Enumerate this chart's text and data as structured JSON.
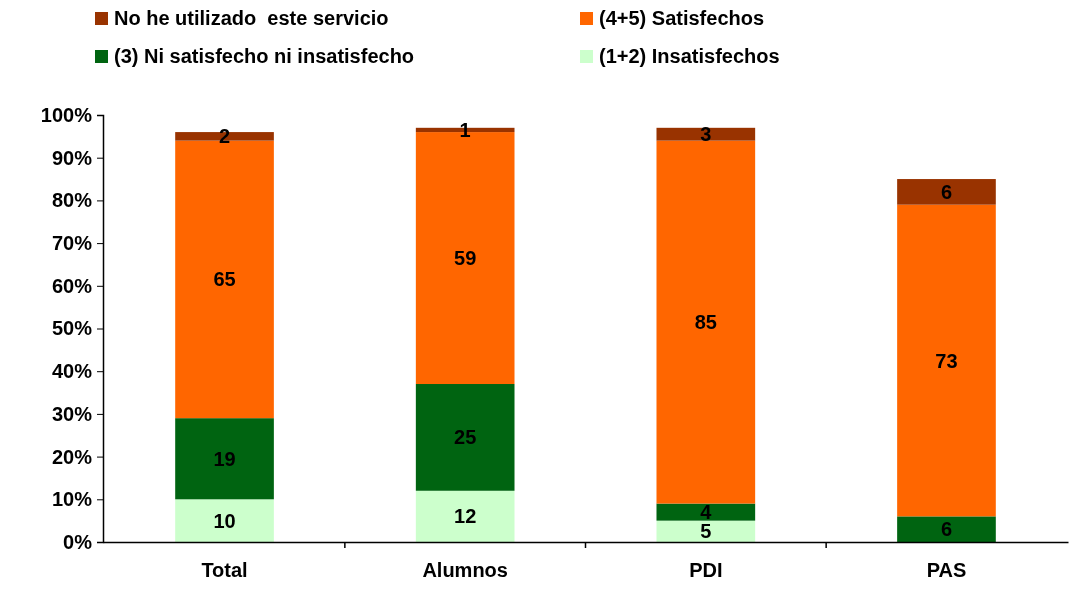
{
  "chart_data": {
    "type": "bar",
    "stacked": true,
    "categories": [
      "Total",
      "Alumnos",
      "PDI",
      "PAS"
    ],
    "series": [
      {
        "name": "(1+2) Insatisfechos",
        "color": "#ccffcc",
        "values": [
          10,
          12,
          5,
          null
        ]
      },
      {
        "name": "(3) Ni satisfecho ni insatisfecho",
        "color": "#006411",
        "values": [
          19,
          25,
          4,
          6
        ]
      },
      {
        "name": "(4+5) Satisfechos",
        "color": "#ff6600",
        "values": [
          65,
          59,
          85,
          73
        ]
      },
      {
        "name": "No he utilizado  este servicio",
        "color": "#993300",
        "values": [
          2,
          1,
          3,
          6
        ]
      }
    ],
    "data_labels": true,
    "ylim": [
      0,
      100
    ],
    "yticks": [
      {
        "value": 0,
        "label": "0%"
      },
      {
        "value": 10,
        "label": "10%"
      },
      {
        "value": 20,
        "label": "20%"
      },
      {
        "value": 30,
        "label": "30%"
      },
      {
        "value": 40,
        "label": "40%"
      },
      {
        "value": 50,
        "label": "50%"
      },
      {
        "value": 60,
        "label": "60%"
      },
      {
        "value": 70,
        "label": "70%"
      },
      {
        "value": 80,
        "label": "80%"
      },
      {
        "value": 90,
        "label": "90%"
      },
      {
        "value": 100,
        "label": "100%"
      }
    ],
    "grid": false,
    "legend": "top"
  }
}
